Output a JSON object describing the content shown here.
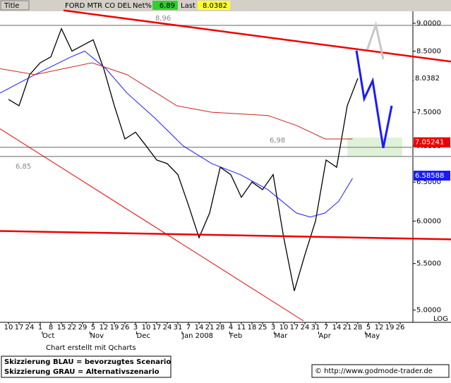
{
  "header": {
    "title_box": "Title",
    "symbol": "FORD MTR CO DEL",
    "net_label": "Net%",
    "net": 6.89,
    "last_label": "Last",
    "last": 8.0382
  },
  "chart_data": {
    "type": "line",
    "log_scale": true,
    "ylim": [
      4.89,
      9.21
    ],
    "xlim": [
      -0.8,
      38.2
    ],
    "yticks": [
      {
        "value": 5,
        "label": "5.0000"
      },
      {
        "value": 5.5,
        "label": "5.5000"
      },
      {
        "value": 6,
        "label": "6.0000"
      },
      {
        "value": 6.5,
        "label": "6.5000"
      },
      {
        "value": 7,
        "label": "7.0000"
      },
      {
        "value": 7.5,
        "label": "7.5000"
      },
      {
        "value": 8,
        "label": "8.0000"
      },
      {
        "value": 8.5,
        "label": "8.5000"
      },
      {
        "value": 9,
        "label": "9.0000"
      }
    ],
    "xticks": [
      {
        "value": 0,
        "label": "10"
      },
      {
        "value": 1,
        "label": "17"
      },
      {
        "value": 2,
        "label": "24"
      },
      {
        "value": 3,
        "label": "1"
      },
      {
        "value": 4,
        "label": "8"
      },
      {
        "value": 5,
        "label": "15"
      },
      {
        "value": 6,
        "label": "22"
      },
      {
        "value": 7,
        "label": "29"
      },
      {
        "value": 8,
        "label": "5"
      },
      {
        "value": 9,
        "label": "12"
      },
      {
        "value": 10,
        "label": "19"
      },
      {
        "value": 11,
        "label": "26"
      },
      {
        "value": 12,
        "label": "3"
      },
      {
        "value": 13,
        "label": "10"
      },
      {
        "value": 14,
        "label": "17"
      },
      {
        "value": 15,
        "label": "24"
      },
      {
        "value": 16,
        "label": "31"
      },
      {
        "value": 17,
        "label": "7"
      },
      {
        "value": 18,
        "label": "14"
      },
      {
        "value": 19,
        "label": "21"
      },
      {
        "value": 20,
        "label": "28"
      },
      {
        "value": 21,
        "label": "4"
      },
      {
        "value": 22,
        "label": "11"
      },
      {
        "value": 23,
        "label": "18"
      },
      {
        "value": 24,
        "label": "25"
      },
      {
        "value": 25,
        "label": "3"
      },
      {
        "value": 26,
        "label": "10"
      },
      {
        "value": 27,
        "label": "17"
      },
      {
        "value": 28,
        "label": "24"
      },
      {
        "value": 29,
        "label": "31"
      },
      {
        "value": 30,
        "label": "7"
      },
      {
        "value": 31,
        "label": "14"
      },
      {
        "value": 32,
        "label": "21"
      },
      {
        "value": 33,
        "label": "28"
      },
      {
        "value": 34,
        "label": "5"
      },
      {
        "value": 35,
        "label": "12"
      },
      {
        "value": 36,
        "label": "19"
      },
      {
        "value": 37,
        "label": "26"
      }
    ],
    "months": [
      {
        "value": 3.2,
        "label": "Oct"
      },
      {
        "value": 7.7,
        "label": "Nov"
      },
      {
        "value": 12.1,
        "label": "Dec"
      },
      {
        "value": 16.4,
        "label": "Jan 2008"
      },
      {
        "value": 20.9,
        "label": "Feb"
      },
      {
        "value": 25.1,
        "label": "Mar"
      },
      {
        "value": 29.3,
        "label": "Apr"
      },
      {
        "value": 33.7,
        "label": "May"
      }
    ],
    "scale_label": "LOG",
    "series": [
      {
        "color": "#000000",
        "width": 1.3,
        "x": [
          0,
          1,
          2,
          3,
          4,
          5,
          6,
          7,
          8,
          9,
          10,
          11,
          12,
          13,
          14,
          15,
          16,
          17,
          18,
          19,
          20,
          21,
          22,
          23,
          24,
          25,
          26,
          27,
          28,
          29,
          30,
          31,
          32,
          33
        ],
        "values": [
          7.7,
          7.6,
          8.1,
          8.3,
          8.4,
          8.9,
          8.5,
          8.6,
          8.7,
          8.2,
          7.6,
          7.1,
          7.2,
          7.0,
          6.8,
          6.75,
          6.6,
          6.2,
          5.8,
          6.1,
          6.7,
          6.6,
          6.3,
          6.5,
          6.4,
          6.6,
          5.8,
          5.2,
          5.6,
          6.0,
          6.8,
          6.7,
          7.6,
          8.04
        ]
      },
      {
        "color": "#1a1aff",
        "width": 1,
        "x": [
          -0.8,
          2.5,
          5.9,
          7.2,
          9.2,
          11.2,
          13.9,
          16.5,
          19.2,
          21.9,
          24.5,
          27.2,
          28.5,
          29.9,
          31.2,
          32.5
        ],
        "values": [
          7.8,
          8.1,
          8.4,
          8.5,
          8.2,
          7.8,
          7.4,
          7.0,
          6.75,
          6.6,
          6.4,
          6.1,
          6.05,
          6.1,
          6.25,
          6.55
        ]
      },
      {
        "color": "#cc2222",
        "width": 1,
        "x": [
          -0.8,
          2.5,
          7.9,
          11.2,
          15.9,
          19.2,
          24.5,
          27.2,
          29.9,
          32.5
        ],
        "values": [
          8.2,
          8.1,
          8.3,
          8.1,
          7.6,
          7.5,
          7.45,
          7.3,
          7.1,
          7.1
        ]
      },
      {
        "color": "#ee0000",
        "width": 2.5,
        "x": [
          5.2,
          41.8
        ],
        "values": [
          9.24,
          8.32
        ]
      },
      {
        "color": "#ee0000",
        "width": 1,
        "x": [
          -0.8,
          27.87
        ],
        "values": [
          7.25,
          4.89
        ]
      },
      {
        "color": "#ee0000",
        "width": 2.5,
        "x": [
          -0.8,
          41.8
        ],
        "values": [
          5.88,
          5.78
        ]
      },
      {
        "color": "#1a1aff",
        "width": 3,
        "x": [
          32.87,
          33.6,
          34.4,
          35.4,
          36.2
        ],
        "values": [
          8.51,
          7.71,
          8.0,
          6.97,
          7.6
        ]
      },
      {
        "color": "#c8c8c8",
        "width": 3,
        "x": [
          33.9,
          34.7,
          35.4
        ],
        "values": [
          8.53,
          8.97,
          8.36
        ]
      }
    ],
    "levels": [
      {
        "value": 8.96,
        "label": "8,96",
        "label_x": 13.2
      },
      {
        "value": 6.98,
        "label": "6,98",
        "label_x": 24.0
      },
      {
        "value": 6.85,
        "label": "6,85",
        "label_x": 0
      }
    ],
    "target_zone": {
      "x": [
        32,
        37.2
      ],
      "y": [
        6.85,
        7.12
      ],
      "color": "#dff2d8"
    },
    "last_values": [
      {
        "value": 8.0382,
        "bg": "#ffffff",
        "fg": "#000000"
      },
      {
        "value": 7.05241,
        "bg": "#ee0000",
        "fg": "#ffffff"
      },
      {
        "value": 6.58588,
        "bg": "#1a1aff",
        "fg": "#ffffff"
      }
    ]
  },
  "footer": {
    "credit": "Chart erstellt mit Qcharts",
    "legend": [
      "Skizzierung BLAU = bevorzugtes Scenario",
      "Skizzierung GRAU = Alternativszenario"
    ],
    "url": "© http://www.godmode-trader.de"
  }
}
